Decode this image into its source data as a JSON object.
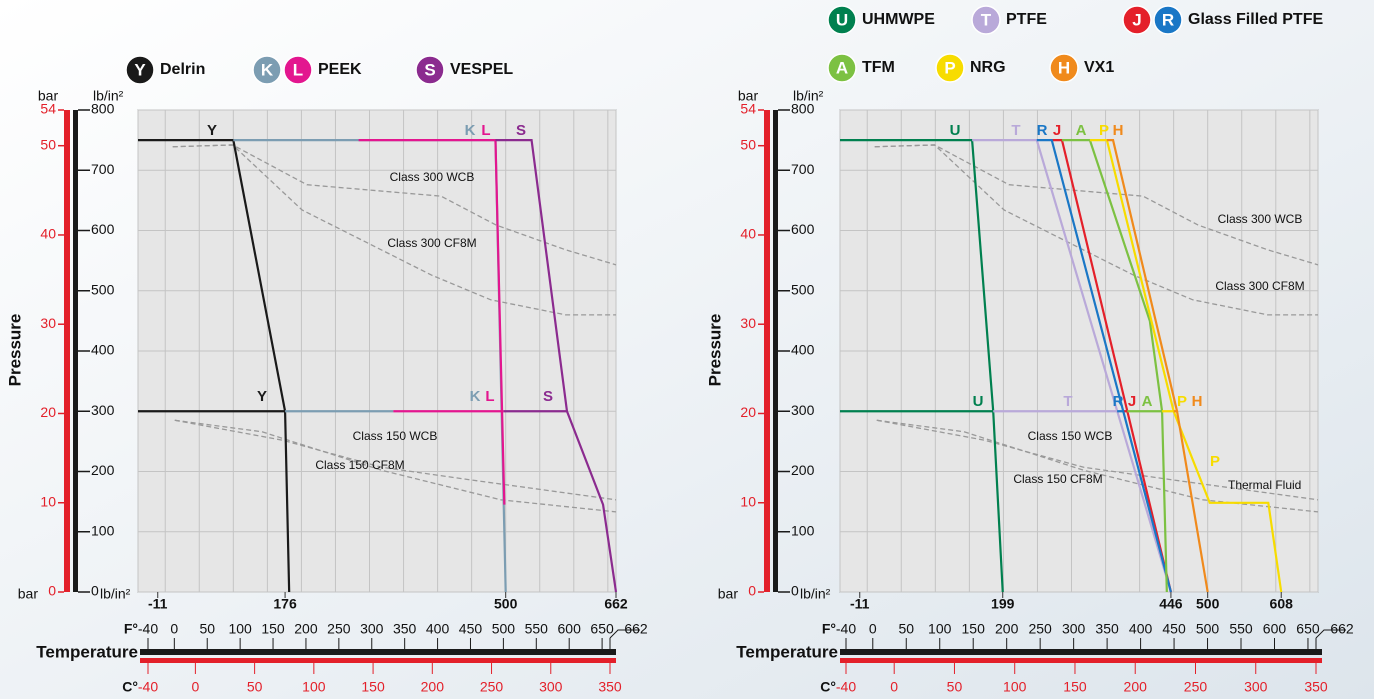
{
  "chart_data": [
    {
      "type": "line",
      "y_label": "Pressure",
      "y_unit": "lb/in²",
      "y2_unit": "bar",
      "x_label": "Temperature",
      "x_unit": "F°",
      "x2_unit": "C°",
      "xlim": [
        -40,
        662
      ],
      "ylim": [
        0,
        800
      ],
      "y2lim": [
        0,
        54
      ],
      "yticks": [
        0,
        100,
        200,
        300,
        400,
        500,
        600,
        700,
        800
      ],
      "y2ticks": [
        0,
        10,
        20,
        30,
        40,
        50,
        54
      ],
      "xticks": [
        -11,
        176,
        500,
        662
      ],
      "fticks": [
        -40,
        0,
        50,
        100,
        150,
        200,
        250,
        300,
        350,
        400,
        450,
        500,
        550,
        600,
        650,
        662
      ],
      "x2lim": [
        -40,
        350
      ],
      "cticks": [
        -40,
        0,
        50,
        100,
        150,
        200,
        250,
        300,
        350
      ],
      "series": [
        {
          "name": "Delrin",
          "label": "Y",
          "color": "#1a1a1a",
          "x": [
            -40,
            100,
            176,
            182,
            null,
            -40,
            176
          ],
          "values": [
            750,
            750,
            300,
            0,
            null,
            300,
            300
          ]
        },
        {
          "name": "PEEK",
          "label": "K",
          "color": "#7c9db2",
          "x": [
            100,
            485,
            500,
            null,
            176,
            335
          ],
          "values": [
            750,
            750,
            0,
            null,
            300,
            300
          ]
        },
        {
          "name": "PEEK",
          "label": "L",
          "color": "#e3168f",
          "x": [
            284,
            485,
            498,
            null,
            335,
            497
          ],
          "values": [
            750,
            750,
            145,
            null,
            300,
            300
          ]
        },
        {
          "name": "VESPEL",
          "label": "S",
          "color": "#8b2b8f",
          "x": [
            485,
            538,
            590,
            643,
            662,
            null,
            497,
            590
          ],
          "values": [
            750,
            750,
            300,
            145,
            0,
            null,
            300,
            300
          ]
        }
      ],
      "reference_curves": [
        {
          "name": "Class 300 WCB",
          "x": [
            11,
            99,
            208,
            405,
            486,
            588,
            662
          ],
          "values": [
            739,
            742,
            676,
            657,
            609,
            568,
            543
          ]
        },
        {
          "name": "Class 300 CF8M",
          "x": [
            11,
            99,
            201,
            391,
            478,
            588,
            662
          ],
          "values": [
            739,
            742,
            634,
            526,
            485,
            460,
            460
          ]
        },
        {
          "name": "Class 150 WCB",
          "x": [
            14,
            172,
            318,
            449,
            662
          ],
          "values": [
            285,
            252,
            207,
            186,
            153
          ]
        },
        {
          "name": "Class 150 CF8M",
          "x": [
            14,
            142,
            318,
            493,
            662
          ],
          "values": [
            285,
            266,
            202,
            153,
            133
          ]
        }
      ]
    },
    {
      "type": "line",
      "y_label": "Pressure",
      "y_unit": "lb/in²",
      "y2_unit": "bar",
      "x_label": "Temperature",
      "x_unit": "F°",
      "x2_unit": "C°",
      "xlim": [
        -40,
        662
      ],
      "ylim": [
        0,
        800
      ],
      "y2lim": [
        0,
        54
      ],
      "yticks": [
        0,
        100,
        200,
        300,
        400,
        500,
        600,
        700,
        800
      ],
      "y2ticks": [
        0,
        10,
        20,
        30,
        40,
        50,
        54
      ],
      "xticks": [
        -11,
        199,
        446,
        500,
        608
      ],
      "fticks": [
        -40,
        0,
        50,
        100,
        150,
        200,
        250,
        300,
        350,
        400,
        450,
        500,
        550,
        600,
        650,
        662
      ],
      "x2lim": [
        -40,
        350
      ],
      "cticks": [
        -40,
        0,
        50,
        100,
        150,
        200,
        250,
        300,
        350
      ],
      "series": [
        {
          "name": "UHMWPE",
          "label": "U",
          "color": "#00804f",
          "x": [
            -40,
            154,
            185,
            199,
            null,
            -40,
            185
          ],
          "values": [
            750,
            750,
            300,
            0,
            null,
            300,
            300
          ]
        },
        {
          "name": "PTFE",
          "label": "T",
          "color": "#b9a9d9",
          "x": [
            154,
            249,
            446,
            null,
            185,
            367
          ],
          "values": [
            750,
            750,
            0,
            null,
            300,
            300
          ]
        },
        {
          "name": "Glass Filled PTFE",
          "label": "J",
          "color": "#e4202a",
          "x": [
            271,
            286,
            446,
            null,
            376,
            382
          ],
          "values": [
            750,
            750,
            0,
            null,
            300,
            300
          ]
        },
        {
          "name": "Glass Filled PTFE",
          "label": "R",
          "color": "#1a77c6",
          "x": [
            249,
            271,
            446,
            null,
            367,
            376
          ],
          "values": [
            750,
            750,
            0,
            null,
            300,
            300
          ]
        },
        {
          "name": "TFM",
          "label": "A",
          "color": "#7cc142",
          "x": [
            286,
            327,
            415,
            433,
            440,
            null,
            382,
            433
          ],
          "values": [
            750,
            750,
            450,
            300,
            0,
            null,
            300,
            300
          ]
        },
        {
          "name": "NRG",
          "label": "P",
          "color": "#f7dc00",
          "x": [
            327,
            352,
            450,
            503,
            589,
            608,
            null,
            433,
            450
          ],
          "values": [
            750,
            750,
            300,
            148,
            148,
            0,
            null,
            300,
            300
          ]
        },
        {
          "name": "VX1",
          "label": "H",
          "color": "#f08a1c",
          "x": [
            352,
            361,
            455,
            500,
            null,
            450,
            455
          ],
          "values": [
            750,
            750,
            300,
            0,
            null,
            300,
            300
          ]
        }
      ],
      "reference_curves": [
        {
          "name": "Class 300 WCB",
          "x": [
            11,
            99,
            208,
            405,
            486,
            588,
            662
          ],
          "values": [
            739,
            742,
            676,
            657,
            609,
            568,
            543
          ]
        },
        {
          "name": "Class 300 CF8M",
          "x": [
            11,
            99,
            201,
            391,
            478,
            588,
            662
          ],
          "values": [
            739,
            742,
            634,
            526,
            485,
            460,
            460
          ]
        },
        {
          "name": "Class 150 WCB",
          "x": [
            14,
            172,
            318,
            449,
            662
          ],
          "values": [
            285,
            252,
            207,
            186,
            153
          ]
        },
        {
          "name": "Class 150 CF8M",
          "x": [
            14,
            142,
            318,
            493,
            662
          ],
          "values": [
            285,
            266,
            202,
            153,
            133
          ]
        }
      ],
      "annotations": [
        "Thermal Fluid"
      ]
    }
  ]
}
